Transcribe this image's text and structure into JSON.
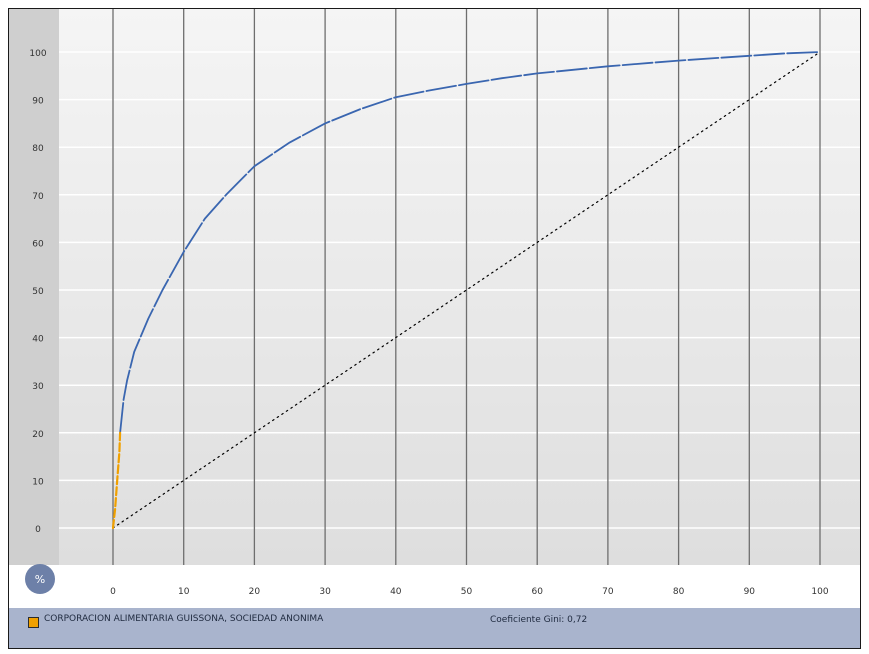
{
  "chart_data": {
    "type": "line",
    "title": "",
    "xlabel": "",
    "ylabel": "",
    "unit_badge": "%",
    "xlim": [
      0,
      100
    ],
    "ylim": [
      0,
      100
    ],
    "x_ticks": [
      0,
      10,
      20,
      30,
      40,
      50,
      60,
      70,
      80,
      90,
      100
    ],
    "y_ticks": [
      0,
      10,
      20,
      30,
      40,
      50,
      60,
      70,
      80,
      90,
      100
    ],
    "grid": true,
    "series": [
      {
        "name": "CORPORACION ALIMENTARIA GUISSONA, SOCIEDAD ANONIMA",
        "color": "#f0a000",
        "x": [
          0,
          0.3,
          0.6,
          0.9,
          1.0
        ],
        "y": [
          0,
          4,
          10,
          16,
          20
        ]
      },
      {
        "color": "#3a66b0",
        "x": [
          1.0,
          1.5,
          2,
          3,
          5,
          7,
          10,
          13,
          16,
          20,
          25,
          30,
          35,
          40,
          45,
          50,
          55,
          60,
          70,
          80,
          90,
          95,
          100
        ],
        "y": [
          20,
          27,
          31,
          37,
          44,
          50,
          58,
          65,
          70,
          76,
          81,
          85,
          88,
          90.5,
          92,
          93.3,
          94.5,
          95.5,
          97,
          98.2,
          99.2,
          99.7,
          100
        ]
      },
      {
        "color": "#000000",
        "style": "dotted",
        "x": [
          0,
          100
        ],
        "y": [
          0,
          100
        ]
      }
    ]
  },
  "legend": {
    "label": "CORPORACION ALIMENTARIA GUISSONA, SOCIEDAD ANONIMA",
    "swatch_color": "#f0a000"
  },
  "gini": {
    "text": "Coeficiente Gini: 0,72"
  }
}
